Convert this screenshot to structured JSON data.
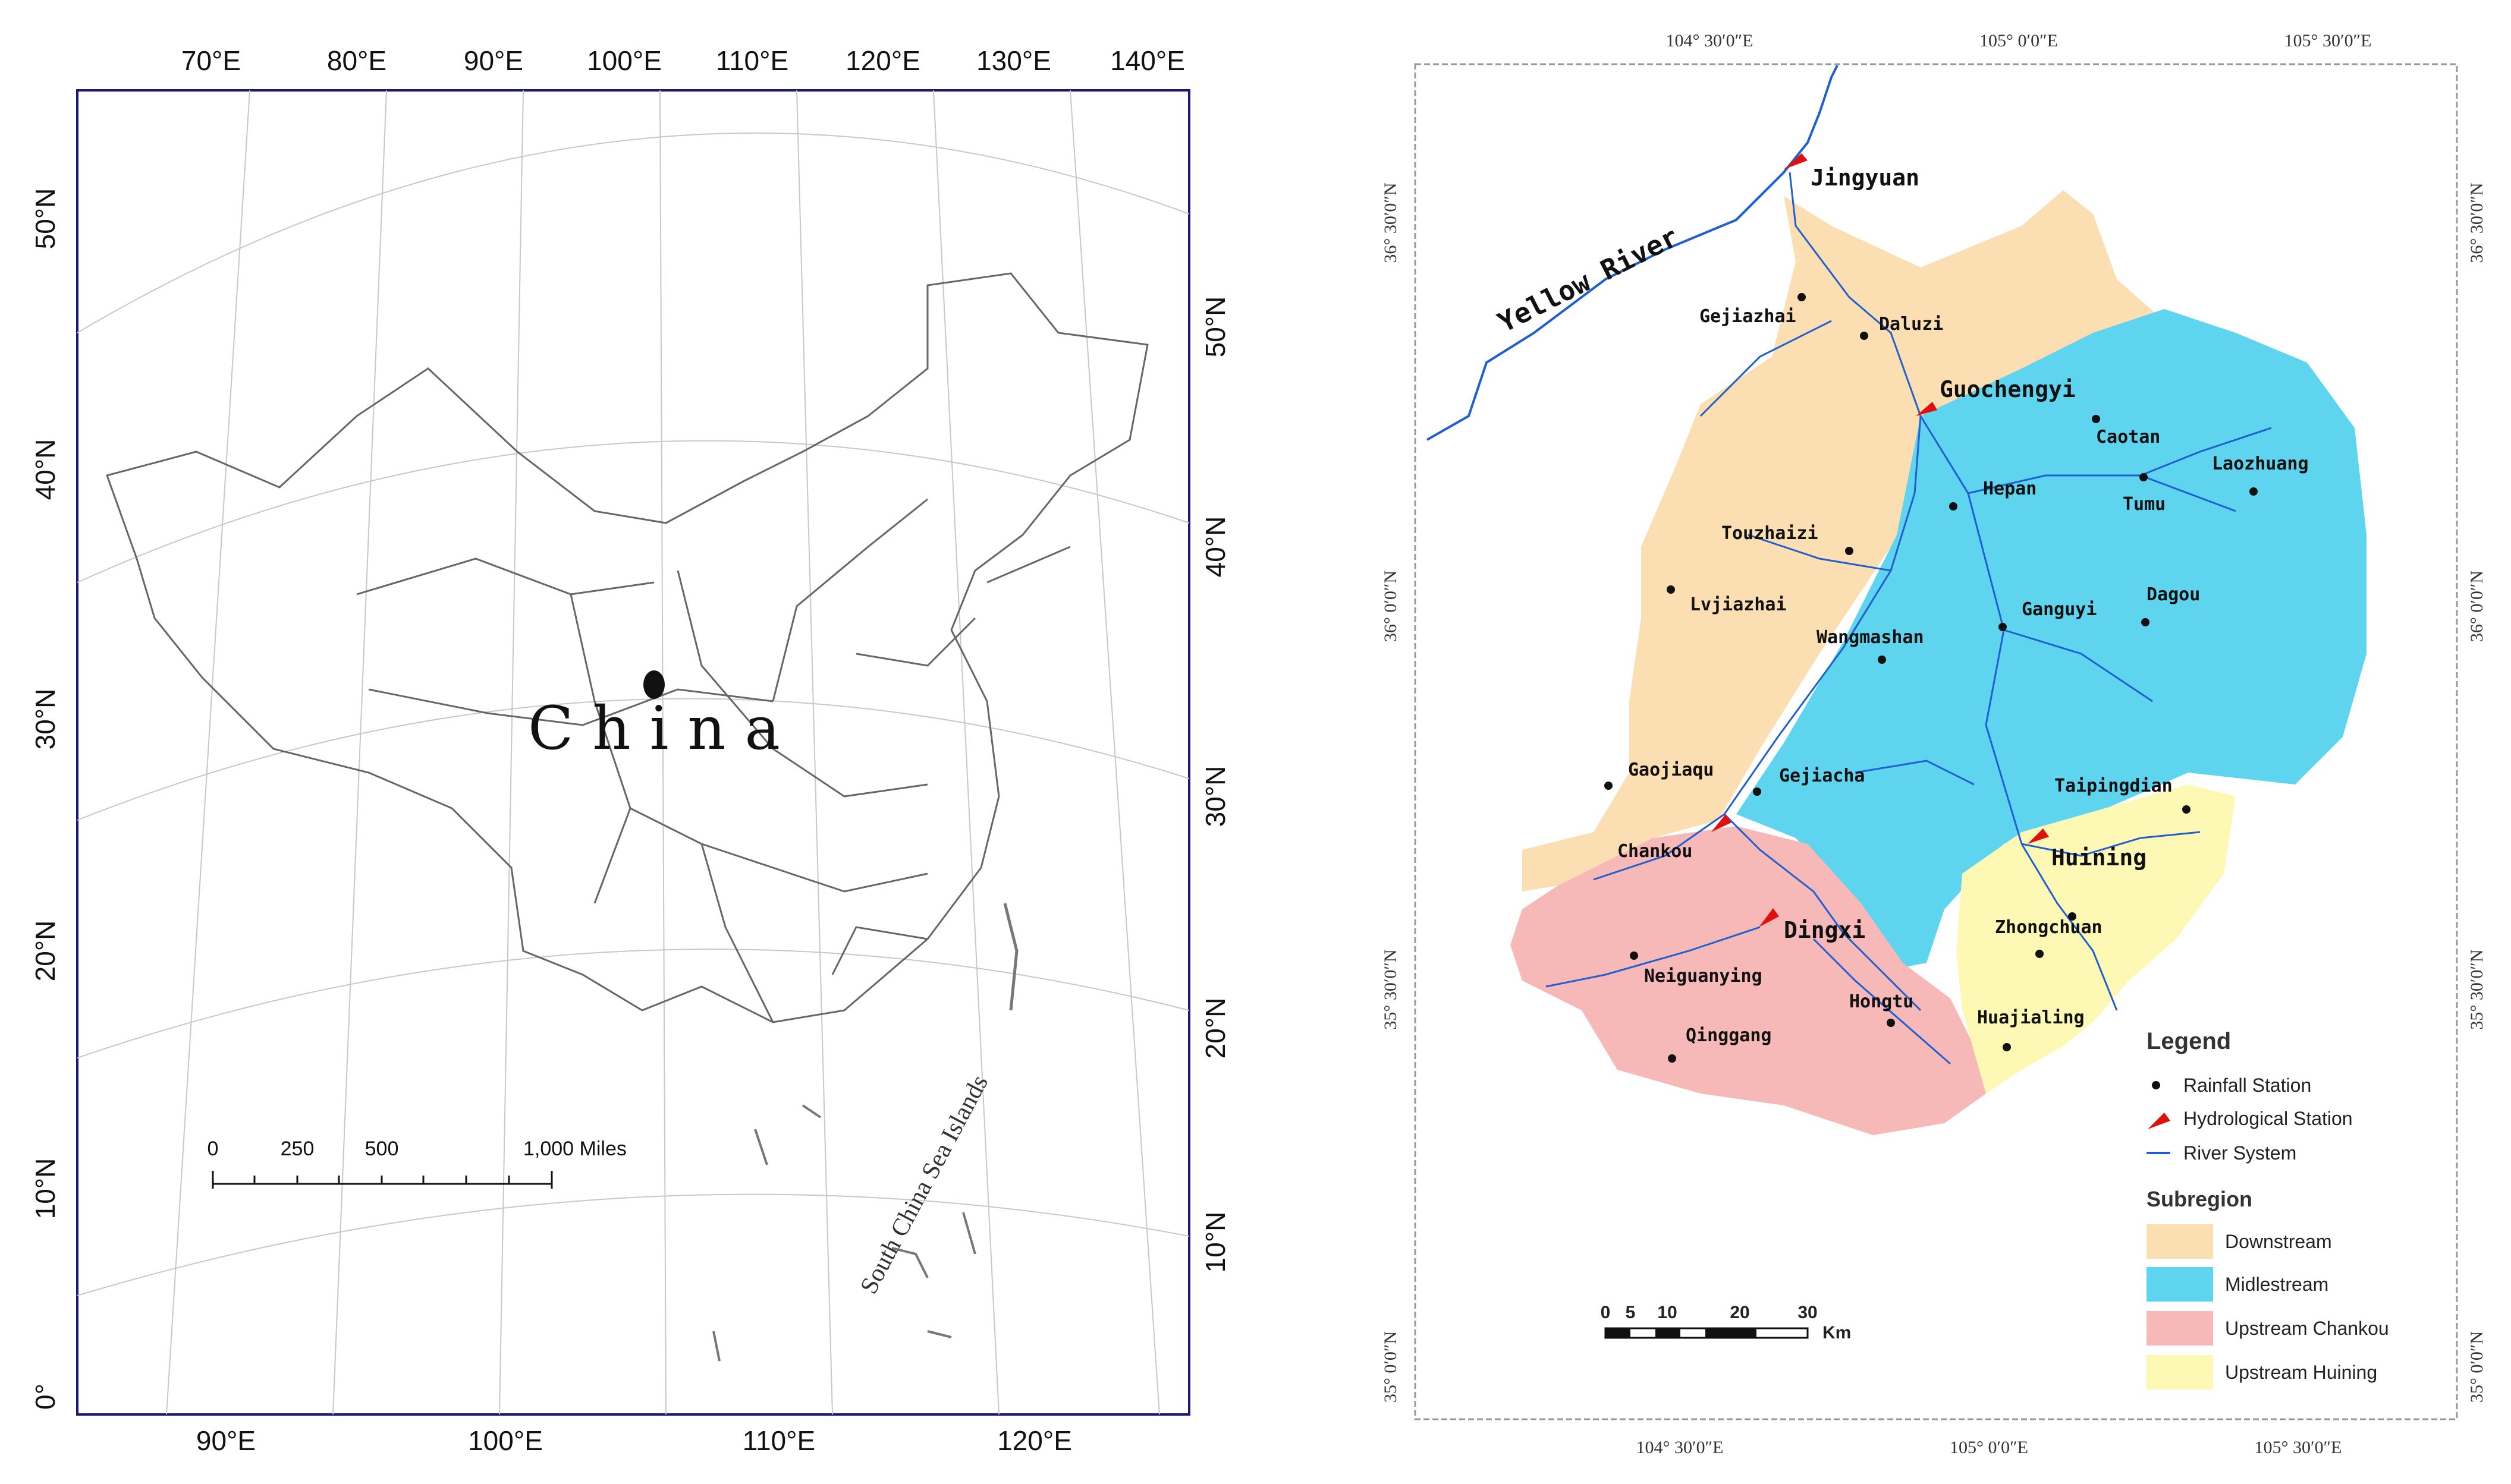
{
  "left_map": {
    "top_lon_labels": [
      "70°E",
      "80°E",
      "90°E",
      "100°E",
      "110°E",
      "120°E",
      "130°E",
      "140°E"
    ],
    "bottom_lon_labels": [
      "90°E",
      "100°E",
      "110°E",
      "120°E"
    ],
    "left_lat_labels": [
      "50°N",
      "40°N",
      "30°N",
      "20°N",
      "10°N",
      "0°"
    ],
    "right_lat_labels": [
      "50°N",
      "40°N",
      "30°N",
      "20°N",
      "10°N"
    ],
    "country_label": "C h i n a",
    "sea_label": "South China Sea Islands",
    "scale_ticks": [
      "0",
      "250",
      "500",
      "1,000 Miles"
    ]
  },
  "right_map": {
    "top_lon_labels": [
      "104° 30′0″E",
      "105° 0′0″E",
      "105° 30′0″E"
    ],
    "bottom_lon_labels": [
      "104° 30′0″E",
      "105° 0′0″E",
      "105° 30′0″E"
    ],
    "lat_labels": [
      "36° 30′0″N",
      "36° 0′0″N",
      "35° 30′0″N",
      "35° 0′0″N"
    ],
    "river_label": "Yellow River",
    "hydro_stations": [
      "Jingyuan",
      "Guochengyi",
      "Chankou",
      "Dingxi",
      "Huining"
    ],
    "rain_stations": [
      "Gejiazhai",
      "Daluzi",
      "Caotan",
      "Laozhuang",
      "Hepan",
      "Tumu",
      "Touzhaizi",
      "Lvjiazhai",
      "Dagou",
      "Ganguyi",
      "Wangmashan",
      "Gaojiaqu",
      "Gejiacha",
      "Taipingdian",
      "Zhongchuan",
      "Neiguanying",
      "Hongtu",
      "Qinggang",
      "Huajialing"
    ],
    "scale_labels": [
      "0",
      "5",
      "10",
      "20",
      "30",
      "Km"
    ],
    "legend": {
      "title": "Legend",
      "rainfall": "Rainfall Station",
      "hydrological": "Hydrological Station",
      "river": "River System",
      "subregion_title": "Subregion",
      "subregions": [
        {
          "label": "Downstream",
          "color": "#fbdfb2"
        },
        {
          "label": "Midlestream",
          "color": "#5fd4ef"
        },
        {
          "label": "Upstream Chankou",
          "color": "#f7b8b8"
        },
        {
          "label": "Upstream Huining",
          "color": "#fdf9b4"
        }
      ]
    },
    "colors": {
      "river": "#1f5fd0",
      "hydro": "#e01010",
      "station": "#111111"
    }
  }
}
